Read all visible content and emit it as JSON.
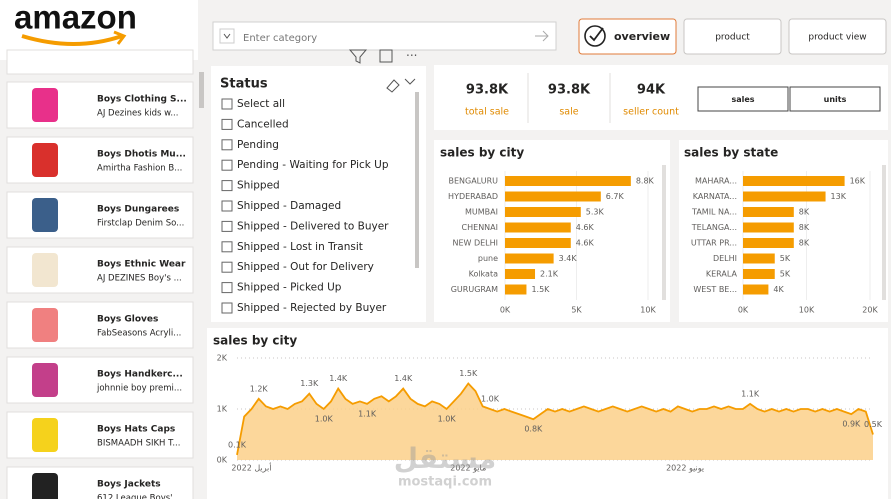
{
  "header": {
    "logo": "amazon",
    "search_placeholder": "Enter category",
    "tabs": [
      "overview",
      "product",
      "product view"
    ]
  },
  "products": [
    {
      "title": "Boys Clothing S...",
      "subtitle": "AJ Dezines kids w..."
    },
    {
      "title": "Boys Dhotis Mu...",
      "subtitle": "Amirtha Fashion B..."
    },
    {
      "title": "Boys Dungarees",
      "subtitle": "Firstclap Denim So..."
    },
    {
      "title": "Boys Ethnic Wear",
      "subtitle": "AJ DEZINES Boy's ..."
    },
    {
      "title": "Boys Gloves",
      "subtitle": "FabSeasons Acryli..."
    },
    {
      "title": "Boys Handkerc...",
      "subtitle": "johnnie boy premi..."
    },
    {
      "title": "Boys Hats Caps",
      "subtitle": "BISMAADH SIKH T..."
    },
    {
      "title": "Boys Jackets",
      "subtitle": "612 League Boys' ..."
    }
  ],
  "status_filter": {
    "title": "Status",
    "options": [
      "Select all",
      "Cancelled",
      "Pending",
      "Pending - Waiting for Pick Up",
      "Shipped",
      "Shipped - Damaged",
      "Shipped - Delivered to Buyer",
      "Shipped - Lost in Transit",
      "Shipped - Out for Delivery",
      "Shipped - Picked Up",
      "Shipped - Rejected by Buyer"
    ]
  },
  "kpis": [
    {
      "value": "93.8K",
      "label": "total sale"
    },
    {
      "value": "93.8K",
      "label": "sale"
    },
    {
      "value": "94K",
      "label": "seller count"
    }
  ],
  "measure_buttons": [
    "sales",
    "units"
  ],
  "watermark": [
    "مستقل",
    "mostaqi.com"
  ],
  "chart_data": [
    {
      "type": "bar",
      "orientation": "horizontal",
      "title": "sales by city",
      "color": "#f59c00",
      "categories": [
        "BENGALURU",
        "HYDERABAD",
        "MUMBAI",
        "CHENNAI",
        "NEW DELHI",
        "pune",
        "Kolkata",
        "GURUGRAM"
      ],
      "values": [
        8800,
        6700,
        5300,
        4600,
        4600,
        3400,
        2100,
        1500
      ],
      "value_labels": [
        "8.8K",
        "6.7K",
        "5.3K",
        "4.6K",
        "4.6K",
        "3.4K",
        "2.1K",
        "1.5K"
      ],
      "xlim": [
        0,
        10000
      ],
      "xticks": [
        {
          "value": 0,
          "label": "0K"
        },
        {
          "value": 5000,
          "label": "5K"
        },
        {
          "value": 10000,
          "label": "10K"
        }
      ],
      "grid": true
    },
    {
      "type": "bar",
      "orientation": "horizontal",
      "title": "sales by state",
      "color": "#f59c00",
      "categories": [
        "MAHARA...",
        "KARNATA...",
        "TAMIL NA...",
        "TELANGA...",
        "UTTAR PR...",
        "DELHI",
        "KERALA",
        "WEST BE..."
      ],
      "values": [
        16000,
        13000,
        8000,
        8000,
        8000,
        5000,
        5000,
        4000
      ],
      "value_labels": [
        "16K",
        "13K",
        "8K",
        "8K",
        "8K",
        "5K",
        "5K",
        "4K"
      ],
      "xlim": [
        0,
        20000
      ],
      "xticks": [
        {
          "value": 0,
          "label": "0K"
        },
        {
          "value": 10000,
          "label": "10K"
        },
        {
          "value": 20000,
          "label": "20K"
        }
      ],
      "grid": true
    },
    {
      "type": "area",
      "title": "sales by city",
      "color": "#f59c00",
      "fill": "#fbd08a",
      "categories": [
        null,
        null,
        "أبريل 2022",
        null,
        null,
        null,
        null,
        null,
        null,
        null,
        null,
        null,
        null,
        null,
        null,
        null,
        null,
        null,
        null,
        null,
        null,
        null,
        null,
        null,
        null,
        null,
        null,
        null,
        null,
        null,
        null,
        null,
        "مايو 2022",
        null,
        null,
        null,
        null,
        null,
        null,
        null,
        null,
        null,
        null,
        null,
        null,
        null,
        null,
        null,
        null,
        null,
        null,
        null,
        null,
        null,
        null,
        null,
        null,
        null,
        null,
        null,
        null,
        null,
        "يونيو 2022",
        null,
        null,
        null,
        null,
        null,
        null,
        null,
        null,
        null,
        null,
        null,
        null,
        null,
        null,
        null,
        null,
        null,
        null,
        null,
        null,
        null,
        null,
        null,
        null,
        null,
        null
      ],
      "values": [
        100,
        850,
        1000,
        1200,
        1050,
        1000,
        1050,
        1000,
        1100,
        1150,
        1300,
        1100,
        1000,
        1150,
        1400,
        1200,
        1100,
        1150,
        1100,
        1200,
        1250,
        1150,
        1250,
        1400,
        1200,
        1100,
        1050,
        1150,
        1100,
        1000,
        1150,
        1300,
        1500,
        1350,
        1050,
        1000,
        950,
        1000,
        950,
        900,
        850,
        800,
        900,
        1000,
        950,
        1000,
        950,
        1000,
        1050,
        1000,
        950,
        1000,
        1050,
        1000,
        950,
        1000,
        1050,
        1000,
        950,
        1000,
        950,
        1050,
        1000,
        950,
        1000,
        1000,
        1050,
        1000,
        1050,
        1000,
        1000,
        1100,
        1000,
        950,
        1000,
        950,
        1000,
        950,
        1000,
        1000,
        950,
        1000,
        950,
        1000,
        950,
        900,
        1000,
        950,
        500
      ],
      "value_labels": [
        "0.1K",
        null,
        null,
        "1.2K",
        null,
        null,
        null,
        null,
        null,
        null,
        "1.3K",
        null,
        "1.0K",
        null,
        "1.4K",
        null,
        null,
        null,
        "1.1K",
        null,
        null,
        null,
        null,
        "1.4K",
        null,
        null,
        null,
        null,
        null,
        "1.0K",
        null,
        null,
        "1.5K",
        null,
        null,
        "1.0K",
        null,
        null,
        null,
        null,
        null,
        "0.8K",
        null,
        null,
        null,
        null,
        null,
        null,
        null,
        null,
        null,
        null,
        null,
        null,
        null,
        null,
        null,
        null,
        null,
        null,
        null,
        null,
        null,
        null,
        null,
        null,
        null,
        null,
        null,
        null,
        null,
        "1.1K",
        null,
        null,
        null,
        null,
        null,
        null,
        null,
        null,
        null,
        null,
        null,
        null,
        null,
        "0.9K",
        null,
        null,
        "0.5K"
      ],
      "ylim": [
        0,
        2000
      ],
      "yticks": [
        {
          "value": 0,
          "label": "0K"
        },
        {
          "value": 1000,
          "label": "1K"
        },
        {
          "value": 2000,
          "label": "2K"
        }
      ],
      "grid": true
    }
  ]
}
